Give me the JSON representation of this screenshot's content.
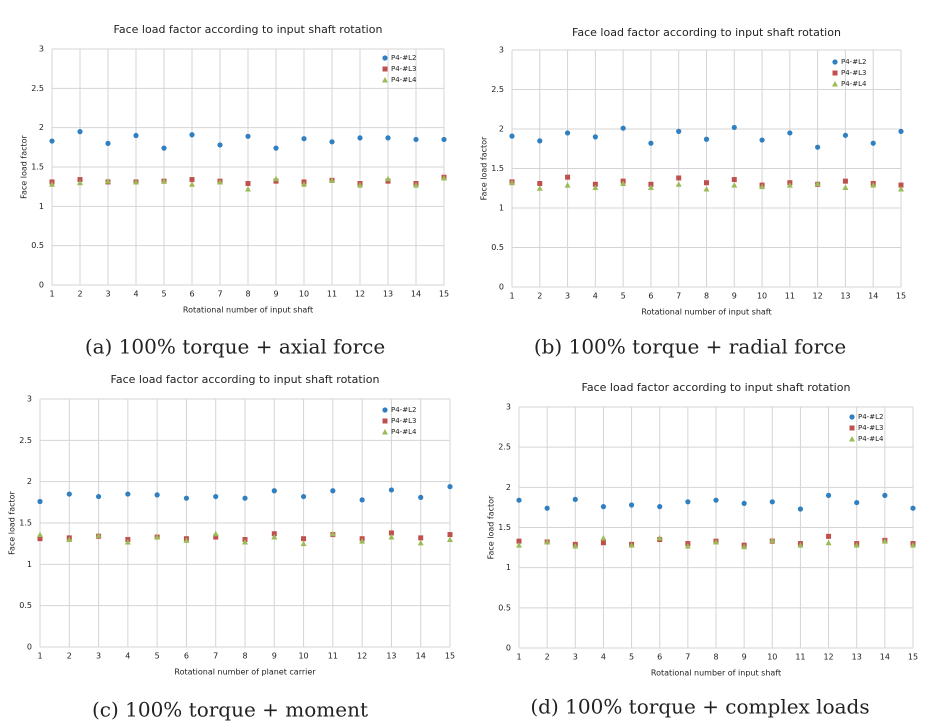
{
  "chart_data": [
    {
      "type": "scatter",
      "title": "Face load factor according to input shaft rotation",
      "x_label": "Rotational number of input shaft",
      "y_label": "Face load factor",
      "caption": "(a) 100% torque + axial force",
      "x": [
        1,
        2,
        3,
        4,
        5,
        6,
        7,
        8,
        9,
        10,
        11,
        12,
        13,
        14,
        15
      ],
      "xlim": [
        1,
        15
      ],
      "xticks": [
        1,
        2,
        3,
        4,
        5,
        6,
        7,
        8,
        9,
        10,
        11,
        12,
        13,
        14,
        15
      ],
      "ylim": [
        0,
        3
      ],
      "yticks": [
        0,
        0.5,
        1,
        1.5,
        2,
        2.5,
        3
      ],
      "grid": true,
      "legend": "upper right",
      "series": [
        {
          "name": "P4-#L2",
          "color": "#2f7fc1",
          "marker": "circle",
          "values": [
            1.83,
            1.95,
            1.8,
            1.9,
            1.74,
            1.91,
            1.78,
            1.89,
            1.74,
            1.86,
            1.82,
            1.87,
            1.87,
            1.85,
            1.85
          ]
        },
        {
          "name": "P4-#L3",
          "color": "#c0504d",
          "marker": "square",
          "values": [
            1.31,
            1.34,
            1.31,
            1.31,
            1.32,
            1.34,
            1.32,
            1.29,
            1.32,
            1.31,
            1.33,
            1.29,
            1.32,
            1.29,
            1.37
          ]
        },
        {
          "name": "P4-#L4",
          "color": "#9bbb59",
          "marker": "triangle",
          "values": [
            1.28,
            1.3,
            1.32,
            1.31,
            1.32,
            1.28,
            1.31,
            1.22,
            1.35,
            1.28,
            1.33,
            1.27,
            1.35,
            1.27,
            1.36
          ]
        }
      ]
    },
    {
      "type": "scatter",
      "title": "Face load factor according to input shaft rotation",
      "x_label": "Rotational number of input shaft",
      "y_label": "Face load factor",
      "caption": "(b) 100% torque + radial force",
      "x": [
        1,
        2,
        3,
        4,
        5,
        6,
        7,
        8,
        9,
        10,
        11,
        12,
        13,
        14,
        15
      ],
      "xlim": [
        1,
        15
      ],
      "xticks": [
        1,
        2,
        3,
        4,
        5,
        6,
        7,
        8,
        9,
        10,
        11,
        12,
        13,
        14,
        15
      ],
      "ylim": [
        0,
        3
      ],
      "yticks": [
        0,
        0.5,
        1,
        1.5,
        2,
        2.5,
        3
      ],
      "grid": true,
      "legend": "upper right",
      "series": [
        {
          "name": "P4-#L2",
          "color": "#2f7fc1",
          "marker": "circle",
          "values": [
            1.91,
            1.85,
            1.95,
            1.9,
            2.01,
            1.82,
            1.97,
            1.87,
            2.02,
            1.86,
            1.95,
            1.77,
            1.92,
            1.82,
            1.97
          ]
        },
        {
          "name": "P4-#L3",
          "color": "#c0504d",
          "marker": "square",
          "values": [
            1.33,
            1.31,
            1.39,
            1.3,
            1.34,
            1.3,
            1.38,
            1.32,
            1.36,
            1.29,
            1.32,
            1.3,
            1.34,
            1.31,
            1.29
          ]
        },
        {
          "name": "P4-#L4",
          "color": "#9bbb59",
          "marker": "triangle",
          "values": [
            1.32,
            1.25,
            1.29,
            1.26,
            1.31,
            1.26,
            1.3,
            1.24,
            1.29,
            1.27,
            1.29,
            1.31,
            1.26,
            1.29,
            1.24
          ]
        }
      ]
    },
    {
      "type": "scatter",
      "title": "Face load factor according to input shaft rotation",
      "x_label": "Rotational number of planet carrier",
      "y_label": "Face load factor",
      "caption": "(c) 100% torque + moment",
      "x": [
        1,
        2,
        3,
        4,
        5,
        6,
        7,
        8,
        9,
        10,
        11,
        12,
        13,
        14,
        15
      ],
      "xlim": [
        1,
        15
      ],
      "xticks": [
        1,
        2,
        3,
        4,
        5,
        6,
        7,
        8,
        9,
        10,
        11,
        12,
        13,
        14,
        15
      ],
      "ylim": [
        0,
        3
      ],
      "yticks": [
        0,
        0.5,
        1,
        1.5,
        2,
        2.5,
        3
      ],
      "grid": true,
      "legend": "upper right",
      "series": [
        {
          "name": "P4-#L2",
          "color": "#2f7fc1",
          "marker": "circle",
          "values": [
            1.76,
            1.85,
            1.82,
            1.85,
            1.84,
            1.8,
            1.82,
            1.8,
            1.89,
            1.82,
            1.89,
            1.78,
            1.9,
            1.81,
            1.94
          ]
        },
        {
          "name": "P4-#L3",
          "color": "#c0504d",
          "marker": "square",
          "values": [
            1.31,
            1.32,
            1.34,
            1.3,
            1.33,
            1.31,
            1.33,
            1.3,
            1.37,
            1.31,
            1.36,
            1.31,
            1.38,
            1.32,
            1.36
          ]
        },
        {
          "name": "P4-#L4",
          "color": "#9bbb59",
          "marker": "triangle",
          "values": [
            1.36,
            1.3,
            1.35,
            1.27,
            1.33,
            1.29,
            1.37,
            1.27,
            1.33,
            1.25,
            1.37,
            1.28,
            1.33,
            1.26,
            1.3
          ]
        }
      ]
    },
    {
      "type": "scatter",
      "title": "Face load factor according to input shaft rotation",
      "x_label": "Rotational number of input shaft",
      "y_label": "Face load factor",
      "caption": "(d) 100% torque + complex loads",
      "x": [
        1,
        2,
        3,
        4,
        5,
        6,
        7,
        8,
        9,
        10,
        11,
        12,
        13,
        14,
        15
      ],
      "xlim": [
        1,
        15
      ],
      "xticks": [
        1,
        2,
        3,
        4,
        5,
        6,
        7,
        8,
        9,
        10,
        11,
        12,
        13,
        14,
        15
      ],
      "ylim": [
        0,
        3
      ],
      "yticks": [
        0,
        0.5,
        1,
        1.5,
        2,
        2.5,
        3
      ],
      "grid": true,
      "legend": "upper right",
      "series": [
        {
          "name": "P4-#L2",
          "color": "#2f7fc1",
          "marker": "circle",
          "values": [
            1.84,
            1.74,
            1.85,
            1.76,
            1.78,
            1.76,
            1.82,
            1.84,
            1.8,
            1.82,
            1.73,
            1.9,
            1.81,
            1.9,
            1.74
          ]
        },
        {
          "name": "P4-#L3",
          "color": "#c0504d",
          "marker": "square",
          "values": [
            1.33,
            1.32,
            1.29,
            1.31,
            1.29,
            1.35,
            1.3,
            1.33,
            1.28,
            1.33,
            1.3,
            1.39,
            1.3,
            1.34,
            1.3
          ]
        },
        {
          "name": "P4-#L4",
          "color": "#9bbb59",
          "marker": "triangle",
          "values": [
            1.28,
            1.32,
            1.27,
            1.37,
            1.28,
            1.37,
            1.27,
            1.32,
            1.26,
            1.34,
            1.28,
            1.31,
            1.28,
            1.33,
            1.28
          ]
        }
      ]
    }
  ]
}
